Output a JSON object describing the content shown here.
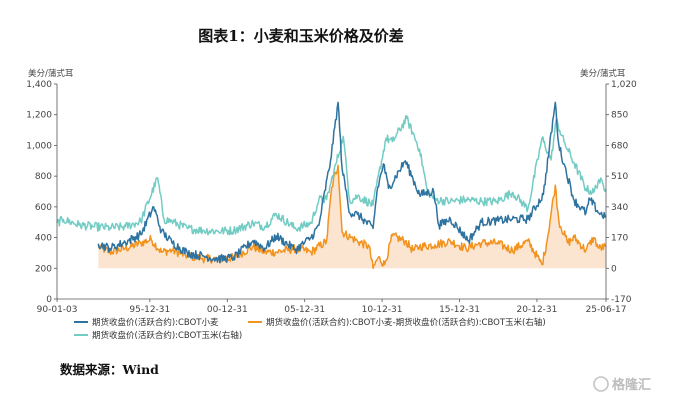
{
  "chart_data": {
    "type": "line",
    "title": "图表1：小麦和玉米价格及价差",
    "source": "数据来源：Wind",
    "watermark": "格隆汇",
    "left_axis": {
      "unit": "美分/蒲式耳",
      "ylim": [
        0,
        1400
      ],
      "ticks": [
        "0",
        "200",
        "400",
        "600",
        "800",
        "1,000",
        "1,200",
        "1,400"
      ]
    },
    "right_axis": {
      "unit": "美分/蒲式耳",
      "ylim": [
        -170,
        1020
      ],
      "ticks": [
        "-170",
        "0",
        "170",
        "340",
        "510",
        "680",
        "850",
        "1,020"
      ]
    },
    "x_axis": {
      "range": [
        "1990-01-01",
        "2025-06-17"
      ],
      "tick_labels": [
        "90-01-03",
        "95-12-31",
        "00-12-31",
        "05-12-31",
        "10-12-31",
        "15-12-31",
        "20-12-31",
        "25-06-17"
      ]
    },
    "series": [
      {
        "name": "期货收盘价(活跃合约):CBOT小麦",
        "axis": "left",
        "color": "#2e72a0",
        "style": "line",
        "start": "1992-09-01",
        "points": [
          [
            "1992-09-01",
            360
          ],
          [
            "1993-06-01",
            330
          ],
          [
            "1994-06-01",
            370
          ],
          [
            "1995-06-01",
            420
          ],
          [
            "1996-04-01",
            600
          ],
          [
            "1996-10-01",
            440
          ],
          [
            "1997-06-01",
            370
          ],
          [
            "1998-06-01",
            300
          ],
          [
            "1999-06-01",
            280
          ],
          [
            "2000-06-01",
            260
          ],
          [
            "2001-06-01",
            270
          ],
          [
            "2002-09-01",
            380
          ],
          [
            "2003-06-01",
            330
          ],
          [
            "2004-03-01",
            410
          ],
          [
            "2005-06-01",
            320
          ],
          [
            "2006-06-01",
            400
          ],
          [
            "2006-12-01",
            480
          ],
          [
            "2007-09-01",
            900
          ],
          [
            "2008-02-27",
            1280
          ],
          [
            "2008-06-01",
            850
          ],
          [
            "2008-12-01",
            560
          ],
          [
            "2009-06-01",
            550
          ],
          [
            "2010-06-01",
            460
          ],
          [
            "2010-09-01",
            700
          ],
          [
            "2011-02-01",
            880
          ],
          [
            "2011-06-01",
            720
          ],
          [
            "2012-07-01",
            900
          ],
          [
            "2013-01-01",
            780
          ],
          [
            "2013-06-01",
            680
          ],
          [
            "2014-05-01",
            700
          ],
          [
            "2014-09-01",
            480
          ],
          [
            "2015-06-01",
            520
          ],
          [
            "2016-08-01",
            380
          ],
          [
            "2017-06-01",
            500
          ],
          [
            "2018-06-01",
            510
          ],
          [
            "2019-06-01",
            520
          ],
          [
            "2020-06-01",
            520
          ],
          [
            "2021-06-01",
            680
          ],
          [
            "2022-03-08",
            1280
          ],
          [
            "2022-06-01",
            1000
          ],
          [
            "2022-10-01",
            880
          ],
          [
            "2023-06-01",
            640
          ],
          [
            "2024-03-01",
            560
          ],
          [
            "2024-06-01",
            650
          ],
          [
            "2025-01-01",
            560
          ],
          [
            "2025-06-17",
            540
          ]
        ]
      },
      {
        "name": "期货收盘价(活跃合约):CBOT小麦-期货收盘价(活跃合约):CBOT玉米(右轴)",
        "axis": "right",
        "color": "#f2921f",
        "style": "area",
        "start": "1992-09-01",
        "points": [
          [
            "1992-09-01",
            120
          ],
          [
            "1993-06-01",
            90
          ],
          [
            "1994-06-01",
            110
          ],
          [
            "1995-06-01",
            140
          ],
          [
            "1996-02-01",
            160
          ],
          [
            "1996-10-01",
            90
          ],
          [
            "1997-06-01",
            100
          ],
          [
            "1998-06-01",
            70
          ],
          [
            "1999-06-01",
            55
          ],
          [
            "2000-06-01",
            50
          ],
          [
            "2001-06-01",
            60
          ],
          [
            "2002-09-01",
            120
          ],
          [
            "2003-06-01",
            90
          ],
          [
            "2004-03-01",
            90
          ],
          [
            "2005-06-01",
            110
          ],
          [
            "2006-06-01",
            90
          ],
          [
            "2007-06-01",
            150
          ],
          [
            "2007-10-01",
            450
          ],
          [
            "2008-02-27",
            570
          ],
          [
            "2008-06-01",
            200
          ],
          [
            "2009-01-01",
            170
          ],
          [
            "2009-06-01",
            150
          ],
          [
            "2010-03-01",
            120
          ],
          [
            "2010-06-01",
            0
          ],
          [
            "2010-10-01",
            60
          ],
          [
            "2011-03-01",
            20
          ],
          [
            "2011-09-01",
            180
          ],
          [
            "2012-07-01",
            150
          ],
          [
            "2013-01-01",
            100
          ],
          [
            "2013-06-01",
            120
          ],
          [
            "2014-06-01",
            130
          ],
          [
            "2015-06-01",
            150
          ],
          [
            "2016-06-01",
            110
          ],
          [
            "2017-06-01",
            140
          ],
          [
            "2018-06-01",
            140
          ],
          [
            "2019-06-01",
            100
          ],
          [
            "2020-06-01",
            150
          ],
          [
            "2021-05-01",
            20
          ],
          [
            "2021-09-01",
            160
          ],
          [
            "2022-03-08",
            460
          ],
          [
            "2022-06-01",
            260
          ],
          [
            "2023-01-01",
            140
          ],
          [
            "2023-06-01",
            170
          ],
          [
            "2024-03-01",
            100
          ],
          [
            "2024-09-01",
            170
          ],
          [
            "2025-01-01",
            110
          ],
          [
            "2025-06-17",
            120
          ]
        ]
      },
      {
        "name": "期货收盘价(活跃合约):CBOT玉米(右轴)",
        "axis": "right",
        "color": "#72ccc4",
        "style": "line",
        "start": "1990-01-01",
        "points": [
          [
            "1990-01-01",
            250
          ],
          [
            "1990-06-01",
            270
          ],
          [
            "1991-06-01",
            240
          ],
          [
            "1992-06-01",
            230
          ],
          [
            "1993-06-01",
            225
          ],
          [
            "1994-06-01",
            230
          ],
          [
            "1995-06-01",
            260
          ],
          [
            "1996-07-01",
            500
          ],
          [
            "1996-12-01",
            270
          ],
          [
            "1997-06-01",
            260
          ],
          [
            "1998-06-01",
            220
          ],
          [
            "1999-06-01",
            210
          ],
          [
            "2000-06-01",
            205
          ],
          [
            "2001-06-01",
            210
          ],
          [
            "2002-09-01",
            250
          ],
          [
            "2003-06-01",
            230
          ],
          [
            "2004-03-01",
            300
          ],
          [
            "2005-06-01",
            220
          ],
          [
            "2006-06-01",
            250
          ],
          [
            "2006-12-01",
            380
          ],
          [
            "2007-06-01",
            380
          ],
          [
            "2008-06-27",
            730
          ],
          [
            "2008-12-01",
            370
          ],
          [
            "2009-06-01",
            400
          ],
          [
            "2010-06-01",
            350
          ],
          [
            "2011-04-01",
            720
          ],
          [
            "2011-09-01",
            700
          ],
          [
            "2012-08-01",
            830
          ],
          [
            "2013-06-01",
            660
          ],
          [
            "2013-12-01",
            430
          ],
          [
            "2014-06-01",
            380
          ],
          [
            "2015-06-01",
            370
          ],
          [
            "2016-06-01",
            380
          ],
          [
            "2017-06-01",
            370
          ],
          [
            "2018-06-01",
            370
          ],
          [
            "2019-06-01",
            420
          ],
          [
            "2020-06-01",
            330
          ],
          [
            "2021-05-01",
            720
          ],
          [
            "2021-12-01",
            600
          ],
          [
            "2022-04-01",
            820
          ],
          [
            "2022-10-01",
            700
          ],
          [
            "2023-06-01",
            580
          ],
          [
            "2024-03-01",
            440
          ],
          [
            "2024-09-01",
            420
          ],
          [
            "2025-01-01",
            490
          ],
          [
            "2025-06-17",
            440
          ]
        ]
      }
    ],
    "legend": [
      "期货收盘价(活跃合约):CBOT小麦",
      "期货收盘价(活跃合约):CBOT小麦-期货收盘价(活跃合约):CBOT玉米(右轴)",
      "期货收盘价(活跃合约):CBOT玉米(右轴)"
    ],
    "legend_placement": "bottom",
    "grid": false
  }
}
